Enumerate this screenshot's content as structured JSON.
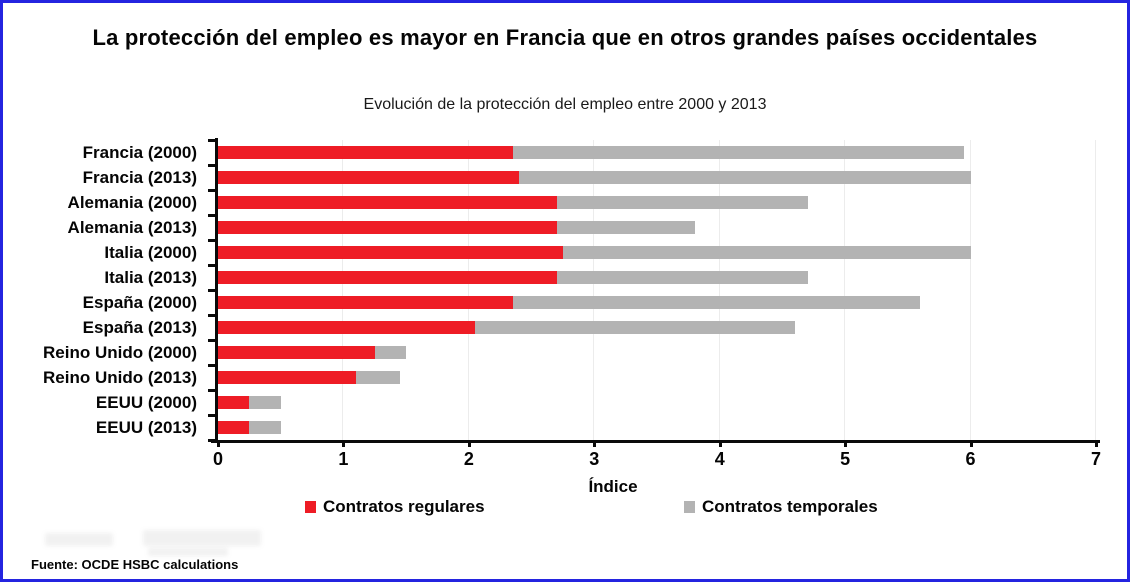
{
  "frame": {
    "border_color": "#2424e0",
    "background": "#ffffff"
  },
  "title": "La protección del empleo es mayor en Francia que en otros grandes países occidentales",
  "subtitle": "Evolución de la protección del empleo entre 2000 y 2013",
  "source": "Fuente: OCDE HSBC calculations",
  "colors": {
    "regular_contracts": "#ee1c25",
    "temporary_contracts": "#b3b3b3",
    "axis": "#0a0a0a",
    "gridline": "#ececec"
  },
  "chart_data": {
    "type": "bar",
    "orientation": "horizontal",
    "stacked": true,
    "title": "Evolución de la protección del empleo entre 2000 y 2013",
    "xlabel": "Índice",
    "ylabel": "",
    "xlim": [
      0,
      7
    ],
    "xticks": [
      0,
      1,
      2,
      3,
      4,
      5,
      6,
      7
    ],
    "grid": true,
    "legend_position": "bottom",
    "categories": [
      "Francia (2000)",
      "Francia (2013)",
      "Alemania (2000)",
      "Alemania (2013)",
      "Italia (2000)",
      "Italia (2013)",
      "España (2000)",
      "España (2013)",
      "Reino Unido (2000)",
      "Reino Unido (2013)",
      "EEUU (2000)",
      "EEUU (2013)"
    ],
    "series": [
      {
        "name": "Contratos regulares",
        "color": "#ee1c25",
        "values": [
          2.35,
          2.4,
          2.7,
          2.7,
          2.75,
          2.7,
          2.35,
          2.05,
          1.25,
          1.1,
          0.25,
          0.25
        ]
      },
      {
        "name": "Contratos temporales",
        "color": "#b3b3b3",
        "values": [
          3.6,
          3.6,
          2.0,
          1.1,
          3.25,
          2.0,
          3.25,
          2.55,
          0.25,
          0.35,
          0.25,
          0.25
        ]
      }
    ]
  }
}
